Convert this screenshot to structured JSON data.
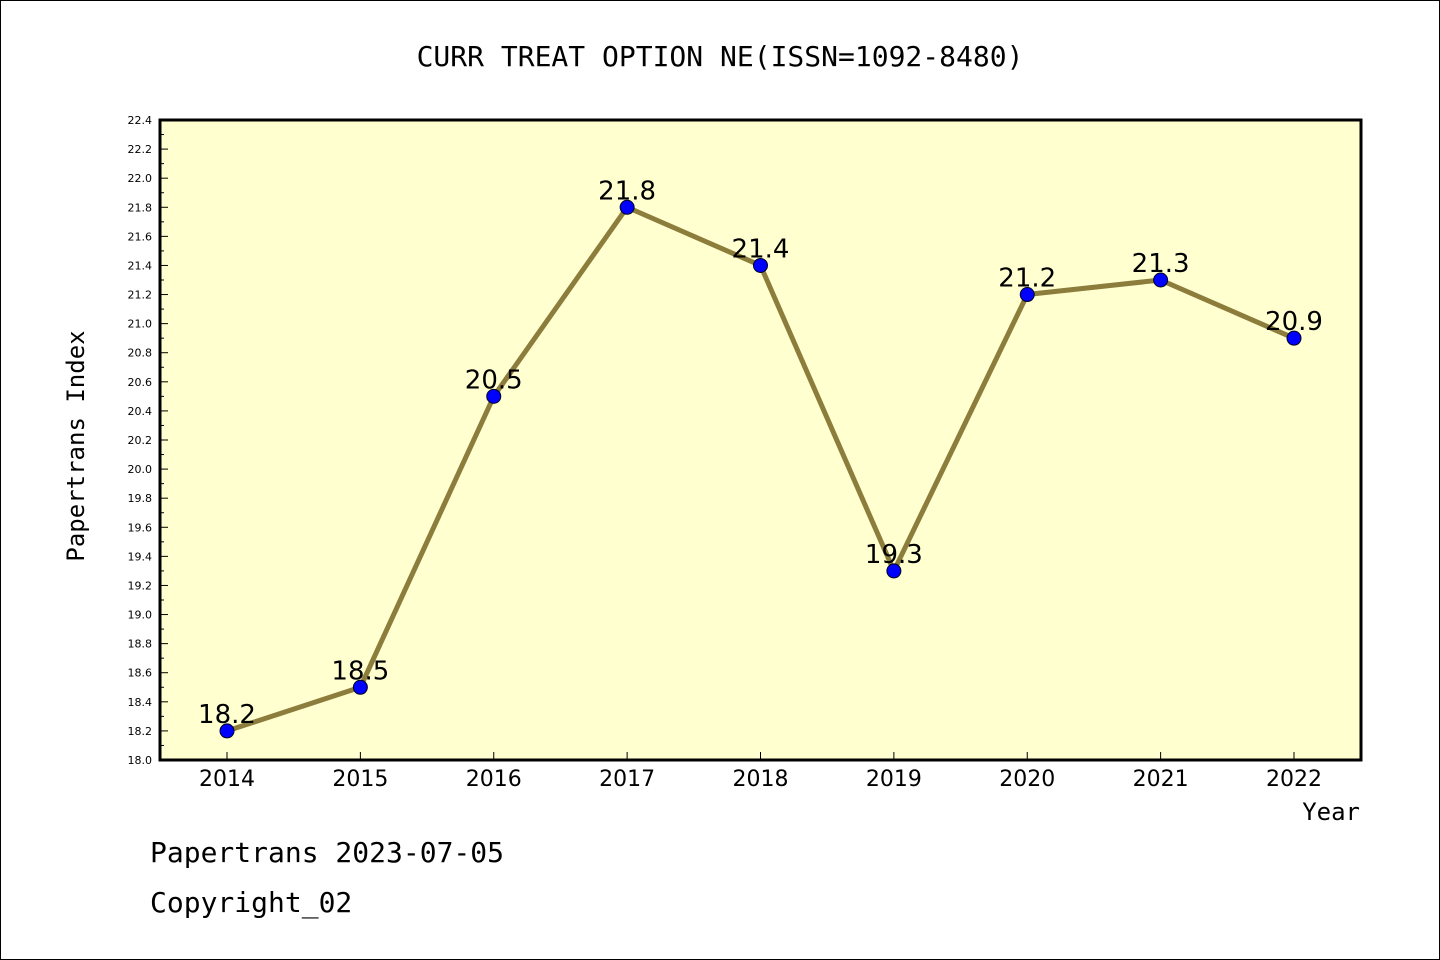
{
  "chart_data": {
    "type": "line",
    "title": "CURR TREAT OPTION NE(ISSN=1092-8480)",
    "xlabel": "Year",
    "ylabel": "Papertrans Index",
    "x": [
      "2014",
      "2015",
      "2016",
      "2017",
      "2018",
      "2019",
      "2020",
      "2021",
      "2022"
    ],
    "series": [
      {
        "values": [
          18.2,
          18.5,
          20.5,
          21.8,
          21.4,
          19.3,
          21.2,
          21.3,
          20.9
        ],
        "labels": [
          "18.2",
          "18.5",
          "20.5",
          "21.8",
          "21.4",
          "19.3",
          "21.2",
          "21.3",
          "20.9"
        ]
      }
    ],
    "ylim": [
      18.0,
      22.4
    ],
    "yticks": [
      "18.0",
      "18.2",
      "18.4",
      "18.6",
      "18.8",
      "19.0",
      "19.2",
      "19.4",
      "19.6",
      "19.8",
      "20.0",
      "20.2",
      "20.4",
      "20.6",
      "20.8",
      "21.0",
      "21.2",
      "21.4",
      "21.6",
      "21.8",
      "22.0",
      "22.2",
      "22.4"
    ],
    "grid": false,
    "colors": {
      "plot_bg": "#ffffd0",
      "line": "#8c7d3c",
      "marker": "#0000ff"
    }
  },
  "footer": {
    "line1": "Papertrans 2023-07-05",
    "line2": "Copyright_02"
  }
}
